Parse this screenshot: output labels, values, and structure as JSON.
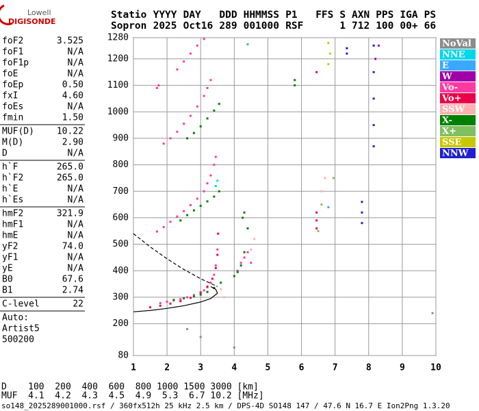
{
  "logo": [
    "Lowell",
    "DIGISONDE"
  ],
  "header": {
    "rows": [
      [
        "Statio",
        "YYYY",
        "DAY",
        "DDD",
        "HHMMSS",
        "P1",
        "FFS",
        "S",
        "AXN",
        "PPS",
        "IGA",
        "PS"
      ],
      [
        "Sopron",
        "2025",
        "Oct16",
        "289",
        "001000",
        "RSF",
        "1",
        "712",
        "100",
        "00+",
        "66"
      ]
    ]
  },
  "parameters": {
    "groups": [
      [
        [
          "foF2",
          "3.525"
        ],
        [
          "foF1",
          "N/A"
        ],
        [
          "foF1p",
          "N/A"
        ],
        [
          "foE",
          "N/A"
        ],
        [
          "foEp",
          "0.50"
        ],
        [
          "fxI",
          "4.60"
        ],
        [
          "foEs",
          "N/A"
        ],
        [
          "fmin",
          "1.50"
        ]
      ],
      [
        [
          "MUF(D)",
          "10.22"
        ],
        [
          "M(D)",
          "2.90"
        ],
        [
          "D",
          "N/A"
        ]
      ],
      [
        [
          "h`F",
          "265.0"
        ],
        [
          "h`F2",
          "265.0"
        ],
        [
          "h`E",
          "N/A"
        ],
        [
          "h`Es",
          "N/A"
        ]
      ],
      [
        [
          "hmF2",
          "321.9"
        ],
        [
          "hmF1",
          "N/A"
        ],
        [
          "hmE",
          "N/A"
        ],
        [
          "yF2",
          "74.0"
        ],
        [
          "yF1",
          "N/A"
        ],
        [
          "yE",
          "N/A"
        ],
        [
          "B0",
          "67.6"
        ],
        [
          "B1",
          "2.74"
        ]
      ],
      [
        [
          "C-level",
          "22"
        ]
      ],
      [
        [
          "Auto:"
        ],
        [
          "Artist5"
        ],
        [
          "500200"
        ]
      ]
    ]
  },
  "muf_table": {
    "rows": [
      [
        "D",
        "100",
        "200",
        "400",
        "600",
        "800",
        "1000",
        "1500",
        "3000",
        "[km]"
      ],
      [
        "MUF",
        "4.1",
        "4.2",
        "4.3",
        "4.5",
        "4.9",
        "5.3",
        "6.7",
        "10.2",
        "[MHz]"
      ]
    ]
  },
  "footer": "so148_2025289001000.rsf / 360fx512h 25 kHz 2.5 km / DPS-4D SO148 147 / 47.6 N 16.7 E  Ion2Png 1.3.20",
  "chart_data": {
    "type": "scatter",
    "xlim": [
      1,
      10
    ],
    "xticks": [
      1,
      2,
      3,
      4,
      5,
      6,
      7,
      8,
      9,
      10
    ],
    "ylim": [
      80,
      1280
    ],
    "yticks": [
      80,
      200,
      300,
      400,
      500,
      600,
      700,
      800,
      900,
      1000,
      1100,
      1200,
      1280
    ],
    "grid": true,
    "series": [
      {
        "name": "NoVal",
        "color": "#8c8c8c",
        "x": [
          2.6,
          3.0,
          4.0,
          9.9
        ],
        "values": [
          180,
          150,
          110,
          240
        ]
      },
      {
        "name": "NNE",
        "color": "#00d8e8",
        "x": [
          3.45,
          3.5
        ],
        "values": [
          720,
          740
        ]
      },
      {
        "name": "E",
        "color": "#3aa8ff",
        "x": [
          4.4,
          6.8
        ],
        "values": [
          1255,
          640
        ]
      },
      {
        "name": "W",
        "color": "#a000a8",
        "x": [
          8.2,
          8.3
        ],
        "values": [
          1200,
          1250
        ]
      },
      {
        "name": "Vo-",
        "color": "#ff3aa0",
        "x": [
          1.8,
          2.0,
          2.2,
          2.4,
          2.6,
          2.8,
          3.0,
          3.1,
          3.2,
          3.3,
          3.4,
          3.45,
          3.5,
          1.7,
          1.9,
          2.1,
          2.3,
          2.5,
          2.7,
          2.9,
          3.1,
          3.2,
          3.3,
          3.4,
          3.45,
          1.9,
          2.1,
          2.3,
          2.5,
          2.7,
          2.9,
          3.1,
          3.2,
          3.3,
          2.3,
          2.5,
          2.7,
          2.9,
          3.1,
          1.7,
          1.75,
          4.1,
          4.2,
          4.3,
          4.4,
          4.5
        ],
        "values": [
          278,
          283,
          288,
          293,
          300,
          308,
          318,
          326,
          338,
          355,
          385,
          420,
          480,
          548,
          565,
          585,
          605,
          625,
          648,
          672,
          700,
          730,
          760,
          800,
          830,
          880,
          900,
          925,
          955,
          985,
          1020,
          1060,
          1090,
          1120,
          1160,
          1190,
          1220,
          1250,
          1275,
          1090,
          1100,
          400,
          430,
          450,
          470,
          430
        ]
      },
      {
        "name": "Vo+",
        "color": "#e8004a",
        "x": [
          1.5,
          1.8,
          2.1,
          2.4,
          2.7,
          3.0,
          3.2,
          3.35,
          3.45,
          3.5,
          3.52,
          6.45,
          6.45,
          6.45,
          6.45
        ],
        "values": [
          262,
          268,
          276,
          285,
          298,
          318,
          340,
          370,
          410,
          460,
          540,
          560,
          590,
          620,
          1150
        ]
      },
      {
        "name": "SSW",
        "color": "#ffb0b0",
        "x": [
          3.6,
          3.7,
          4.5,
          4.6,
          6.6,
          6.7
        ],
        "values": [
          330,
          300,
          480,
          520,
          700,
          750
        ]
      },
      {
        "name": "X-",
        "color": "#008000",
        "x": [
          2.2,
          2.5,
          2.8,
          3.0,
          3.2,
          3.4,
          3.6,
          2.4,
          2.6,
          2.8,
          3.0,
          3.2,
          3.4,
          3.55,
          2.6,
          2.8,
          3.0,
          3.2,
          3.4,
          3.55,
          4.0,
          4.1,
          4.2,
          4.3,
          4.4,
          4.3,
          4.25,
          5.8,
          5.8
        ],
        "values": [
          290,
          296,
          303,
          310,
          320,
          335,
          355,
          590,
          610,
          628,
          645,
          662,
          680,
          700,
          900,
          920,
          945,
          975,
          1005,
          1030,
          380,
          395,
          420,
          470,
          560,
          620,
          600,
          1100,
          1120
        ]
      },
      {
        "name": "X+",
        "color": "#80c060",
        "x": [
          6.5,
          6.6,
          6.95
        ],
        "values": [
          550,
          650,
          750
        ]
      },
      {
        "name": "SSE",
        "color": "#c8c800",
        "x": [
          6.8,
          6.85,
          6.8
        ],
        "values": [
          1180,
          1220,
          1260
        ]
      },
      {
        "name": "NNW",
        "color": "#2020d0",
        "x": [
          8.15,
          8.15,
          8.15,
          8.15,
          8.15,
          7.8,
          7.8,
          7.8,
          7.35,
          7.35
        ],
        "values": [
          870,
          950,
          1050,
          1150,
          1250,
          580,
          620,
          660,
          1220,
          1240
        ]
      }
    ],
    "curves": [
      {
        "color": "#000000",
        "dashed": true,
        "x": [
          1.0,
          1.5,
          2.0,
          2.5,
          3.0,
          3.5
        ],
        "values": [
          540,
          490,
          445,
          405,
          370,
          340
        ]
      },
      {
        "color": "#000000",
        "dashed": false,
        "x": [
          1.0,
          1.5,
          2.0,
          2.5,
          3.0,
          3.3,
          3.5,
          3.45,
          3.3
        ],
        "values": [
          245,
          250,
          258,
          268,
          282,
          295,
          315,
          330,
          340
        ]
      }
    ]
  }
}
